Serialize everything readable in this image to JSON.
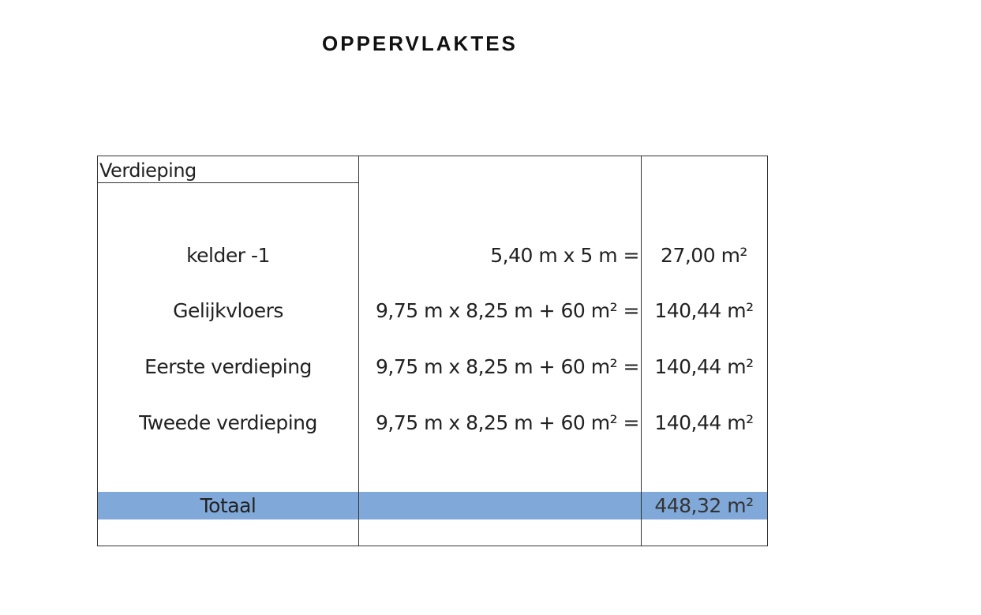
{
  "title": "OPPERVLAKTES",
  "table": {
    "header": "Verdieping",
    "rows": [
      {
        "floor": "kelder -1",
        "formula": "5,40 m x 5 m =",
        "area": "27,00 m²"
      },
      {
        "floor": "Gelijkvloers",
        "formula": "9,75 m x 8,25 m + 60 m² =",
        "area": "140,44 m²"
      },
      {
        "floor": "Eerste verdieping",
        "formula": "9,75 m x 8,25 m + 60 m² =",
        "area": "140,44 m²"
      },
      {
        "floor": "Tweede verdieping",
        "formula": "9,75 m x 8,25 m + 60 m² =",
        "area": "140,44 m²"
      }
    ],
    "total": {
      "label": "Totaal",
      "area": "448,32 m²"
    },
    "highlight_color": "#80a8d8"
  }
}
